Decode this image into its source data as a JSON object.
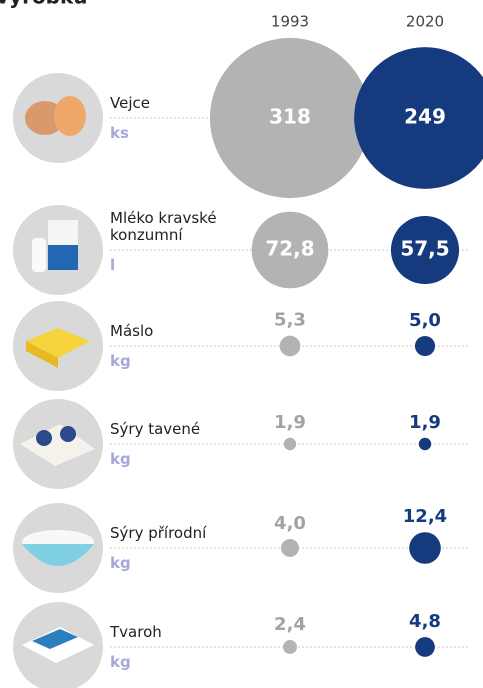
{
  "chart_data": {
    "type": "bubble",
    "title": "výrobků",
    "categories": [
      "Vejce",
      "Mléko kravské konzumní",
      "Máslo",
      "Sýry tavené",
      "Sýry přírodní",
      "Tvaroh"
    ],
    "units": [
      "ks",
      "l",
      "kg",
      "kg",
      "kg",
      "kg"
    ],
    "series": [
      {
        "name": "1993",
        "color": "#b3b3b3",
        "values": [
          318,
          72.8,
          5.3,
          1.9,
          4.0,
          2.4
        ],
        "value_labels": [
          "318",
          "72,8",
          "5,3",
          "1,9",
          "4,0",
          "2,4"
        ]
      },
      {
        "name": "2020",
        "color": "#163a7e",
        "values": [
          249,
          57.5,
          5.0,
          1.9,
          12.4,
          4.8
        ],
        "value_labels": [
          "249",
          "57,5",
          "5,0",
          "1,9",
          "12,4",
          "4,8"
        ]
      }
    ]
  }
}
